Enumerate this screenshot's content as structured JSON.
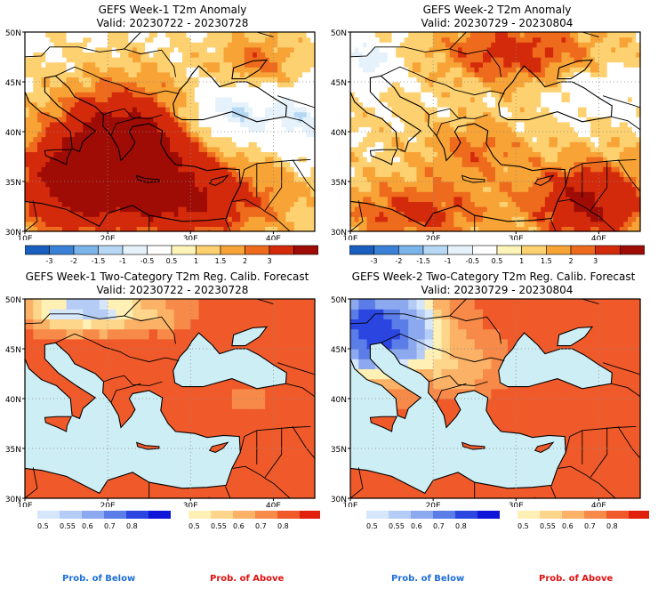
{
  "panels": [
    {
      "id": "w1-anom",
      "title": "GEFS Week-1 T2m Anomaly",
      "valid": "Valid: 20230722 - 20230728",
      "lat_labels": [
        "50N",
        "45N",
        "40N",
        "35N",
        "30N"
      ],
      "lon_labels": [
        "10E",
        "20E",
        "30E",
        "40E"
      ],
      "colorbar_ticks": [
        "-3",
        "-2",
        "-1.5",
        "-1",
        "-0.5",
        "0.5",
        "1",
        "1.5",
        "2",
        "3"
      ]
    },
    {
      "id": "w2-anom",
      "title": "GEFS Week-2 T2m Anomaly",
      "valid": "Valid: 20230729 - 20230804",
      "lat_labels": [
        "50N",
        "45N",
        "40N",
        "35N",
        "30N"
      ],
      "lon_labels": [
        "10E",
        "20E",
        "30E",
        "40E"
      ],
      "colorbar_ticks": [
        "-3",
        "-2",
        "-1.5",
        "-1",
        "-0.5",
        "0.5",
        "1",
        "1.5",
        "2",
        "3"
      ]
    },
    {
      "id": "w1-prob",
      "title": "GEFS Week-1 Two-Category T2m Reg. Calib. Forecast",
      "valid": "Valid: 20230722 - 20230728",
      "lat_labels": [
        "50N",
        "45N",
        "40N",
        "35N",
        "30N"
      ],
      "lon_labels": [
        "10E",
        "20E",
        "30E",
        "40E"
      ],
      "below_ticks": [
        "0.5",
        "0.55",
        "0.6",
        "0.7",
        "0.8"
      ],
      "above_ticks": [
        "0.5",
        "0.55",
        "0.6",
        "0.7",
        "0.8"
      ]
    },
    {
      "id": "w2-prob",
      "title": "GEFS Week-2 Two-Category T2m Reg. Calib. Forecast",
      "valid": "Valid: 20230729 - 20230804",
      "lat_labels": [
        "50N",
        "45N",
        "40N",
        "35N",
        "30N"
      ],
      "lon_labels": [
        "10E",
        "20E",
        "30E",
        "40E"
      ],
      "below_ticks": [
        "0.5",
        "0.55",
        "0.6",
        "0.7",
        "0.8"
      ],
      "above_ticks": [
        "0.5",
        "0.55",
        "0.6",
        "0.7",
        "0.8"
      ]
    }
  ],
  "legend": {
    "below": "Prob. of Below",
    "above": "Prob. of Above",
    "below_color": "#1e6fd9",
    "above_color": "#e01010"
  },
  "colors": {
    "anomaly_scale": [
      "#1a5fbf",
      "#3a82d8",
      "#7ab4ea",
      "#b7d8f4",
      "#e6f2fb",
      "#ffffff",
      "#fff4b8",
      "#fdd070",
      "#f7a336",
      "#ee6a1c",
      "#d42a0c",
      "#9e0c05"
    ],
    "below_scale": [
      "#d6e6fb",
      "#b5cdf6",
      "#8ca9ef",
      "#5b7de8",
      "#2b45e0",
      "#0f16d8"
    ],
    "above_scale": [
      "#fff0b5",
      "#fdd68c",
      "#fbb267",
      "#f78a49",
      "#f05a2a",
      "#e0200d"
    ],
    "sea_prob": "#cdeef5"
  }
}
